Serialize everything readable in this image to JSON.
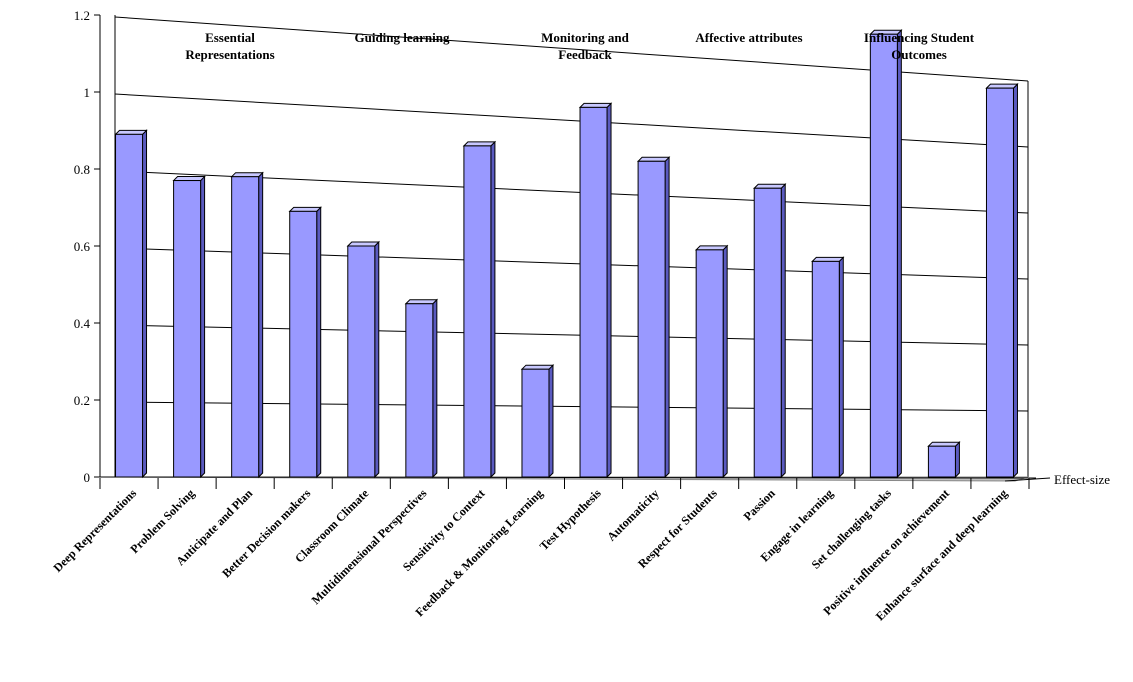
{
  "chart_data": {
    "type": "bar",
    "title": "",
    "xlabel": "",
    "ylabel": "",
    "axis_title": "Effect-size",
    "ylim": [
      0,
      1.2
    ],
    "yticks": [
      "0",
      "0.2",
      "0.4",
      "0.6",
      "0.8",
      "1",
      "1.2"
    ],
    "grid": true,
    "categories": [
      "Deep Representations",
      "Problem Solving",
      "Anticipate and Plan",
      "Better Decision makers",
      "Classroom Climate",
      "Multidimensional Perspectives",
      "Sensitivity to Context",
      "Feedback & Monitoring Learning",
      "Test Hypothesis",
      "Automaticity",
      "Respect for Students",
      "Passion",
      "Engage in learning",
      "Set challenging tasks",
      "Positive influence on achievement",
      "Enhance surface and deep learning"
    ],
    "values": [
      0.89,
      0.77,
      0.78,
      0.69,
      0.6,
      0.45,
      0.86,
      0.28,
      0.96,
      0.82,
      0.59,
      0.75,
      0.56,
      1.15,
      0.08,
      1.01
    ],
    "groups": [
      {
        "lines": [
          "Essential",
          "Representations"
        ]
      },
      {
        "lines": [
          "Guiding learning"
        ]
      },
      {
        "lines": [
          "Monitoring and",
          "Feedback"
        ]
      },
      {
        "lines": [
          "Affective attributes"
        ]
      },
      {
        "lines": [
          "Influencing Student",
          "Outcomes"
        ]
      }
    ],
    "colors": {
      "bar_front": "#9999ff",
      "bar_side": "#5a5abf",
      "bar_top": "#c8c8ff",
      "bar_edge": "#000000",
      "grid": "#000000",
      "floor": "#bfbfbf"
    }
  }
}
